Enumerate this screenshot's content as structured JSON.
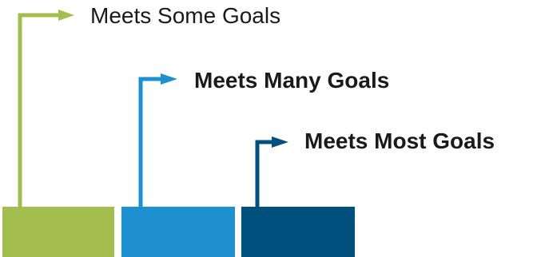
{
  "colors": {
    "some": "#a3be4f",
    "many": "#1e90cf",
    "most": "#00507d",
    "text": "#1a1a1a"
  },
  "steps": [
    {
      "label": "Meets Some Goals",
      "weight": "normal"
    },
    {
      "label": "Meets Many Goals",
      "weight": "bold"
    },
    {
      "label": "Meets Most Goals",
      "weight": "bold"
    }
  ]
}
